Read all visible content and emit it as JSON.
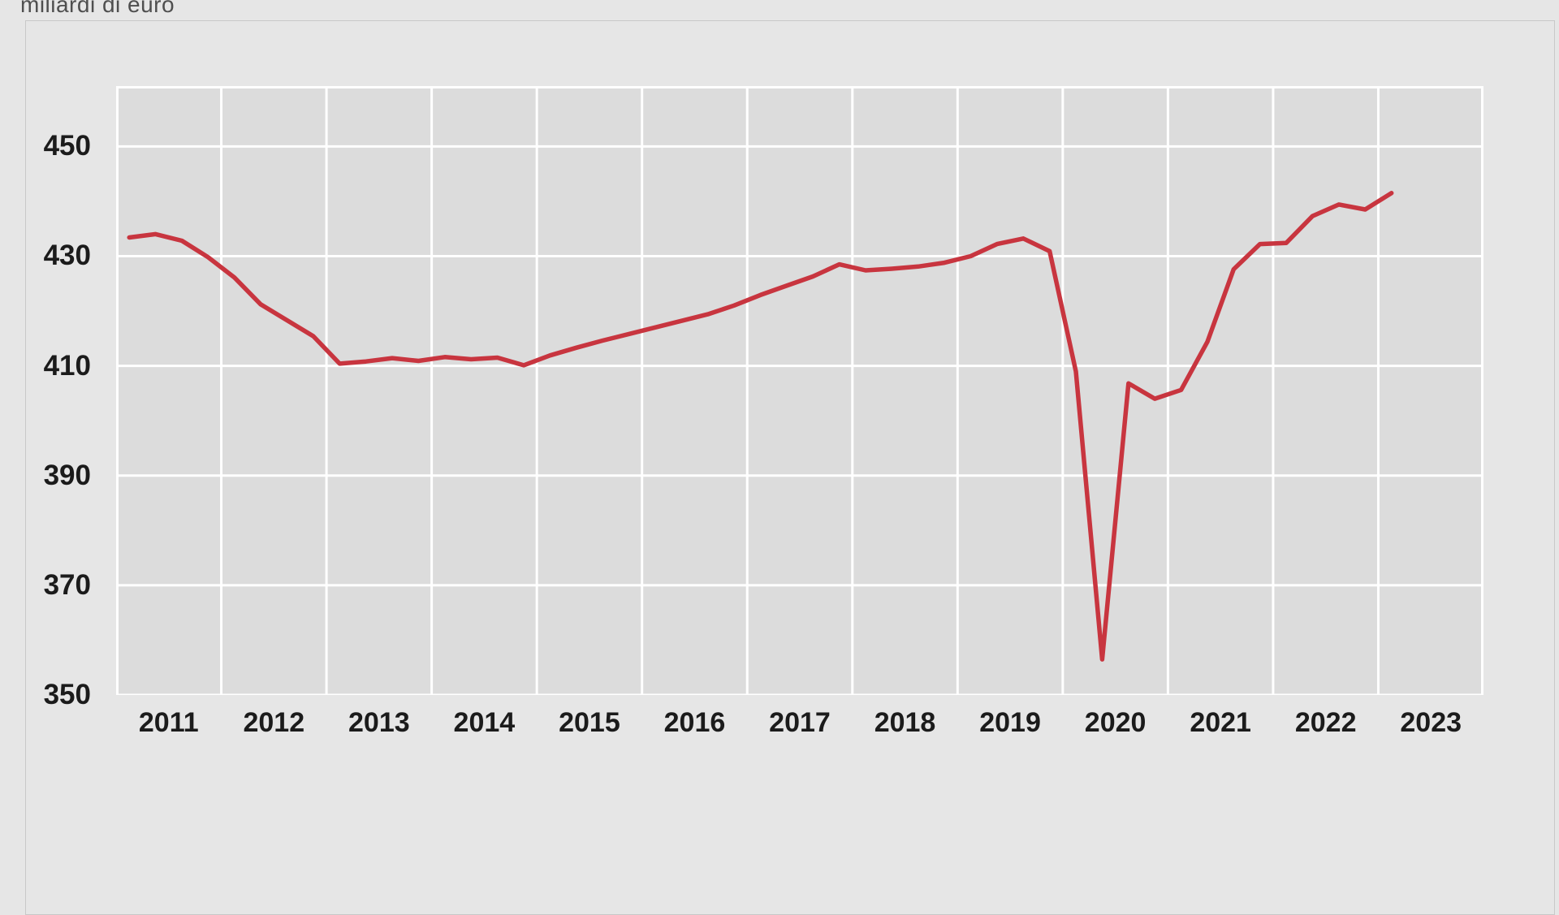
{
  "chart_data": {
    "type": "line",
    "title": "miliardi di euro",
    "x_tick_labels": [
      "2011",
      "2012",
      "2013",
      "2014",
      "2015",
      "2016",
      "2017",
      "2018",
      "2019",
      "2020",
      "2021",
      "2022",
      "2023"
    ],
    "y_ticks": [
      350,
      370,
      390,
      410,
      430,
      450
    ],
    "ylim": [
      350,
      461
    ],
    "xlabel": "",
    "ylabel": "miliardi di euro",
    "grid": true,
    "legend_position": "none",
    "frequency": "quarterly",
    "start_period": "2011-Q1",
    "end_period": "2023-Q1",
    "series": [
      {
        "color": "#c8353f",
        "values": [
          433.4,
          434.0,
          432.8,
          429.8,
          426.1,
          421.2,
          418.3,
          415.4,
          410.4,
          410.8,
          411.4,
          410.9,
          411.6,
          411.2,
          411.5,
          410.1,
          411.9,
          413.3,
          414.6,
          415.8,
          417.0,
          418.2,
          419.4,
          421.0,
          422.9,
          424.6,
          426.3,
          428.5,
          427.4,
          427.7,
          428.1,
          428.8,
          430.0,
          432.2,
          433.2,
          430.9,
          409.0,
          356.5,
          406.8,
          404.0,
          405.6,
          414.4,
          427.6,
          432.2,
          432.4,
          437.3,
          439.4,
          438.5,
          441.5
        ]
      }
    ],
    "colors": {
      "page_background": "#e6e6e6",
      "plot_background": "#dcdcdc",
      "gridline": "#ffffff",
      "tick_text": "#1b1b1b",
      "title_text": "#4f4f4f",
      "frame_border": "#c8c8c8"
    }
  }
}
